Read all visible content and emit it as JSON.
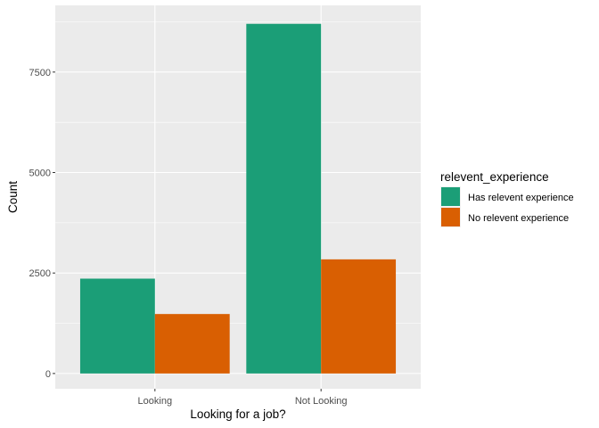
{
  "chart_data": {
    "type": "bar",
    "categories": [
      "Looking",
      "Not Looking"
    ],
    "series": [
      {
        "name": "Has relevent experience",
        "values": [
          2360,
          8700
        ],
        "color": "#1b9e77"
      },
      {
        "name": "No relevent experience",
        "values": [
          1480,
          2840
        ],
        "color": "#d95f02"
      }
    ],
    "title": "",
    "xlabel": "Looking for a job?",
    "ylabel": "Count",
    "ylim": [
      -380,
      9160
    ],
    "yticks": [
      0,
      2500,
      5000,
      7500
    ],
    "yticks_minor": [
      1250,
      3750,
      6250,
      8750
    ],
    "ytick_labels": [
      "0",
      "2500",
      "5000",
      "7500"
    ],
    "legend": {
      "title": "relevent_experience",
      "position": "right"
    },
    "grid": true,
    "panel_background": "#ebebeb",
    "grid_color": "#ffffff"
  }
}
